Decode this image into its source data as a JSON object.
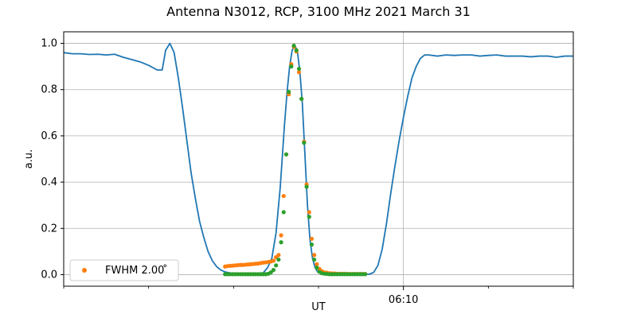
{
  "chart_data": {
    "type": "line",
    "title": "Antenna N3012, RCP, 3100 MHz 2021 March 31",
    "xlabel": "UT",
    "ylabel": "a.u.",
    "xlim": [
      0,
      60
    ],
    "ylim": [
      -0.05,
      1.05
    ],
    "x_ticks": [
      {
        "x": 40,
        "label": "06:10"
      }
    ],
    "x_minor_ticks": [
      0,
      10,
      20,
      30,
      50,
      60
    ],
    "y_ticks": [
      {
        "y": 0.0,
        "label": "0.0"
      },
      {
        "y": 0.2,
        "label": "0.2"
      },
      {
        "y": 0.4,
        "label": "0.4"
      },
      {
        "y": 0.6,
        "label": "0.6"
      },
      {
        "y": 0.8,
        "label": "0.8"
      },
      {
        "y": 1.0,
        "label": "1.0"
      }
    ],
    "grid": true,
    "legend": {
      "placement": "lower-left",
      "entries": [
        {
          "label": "FWHM 2.00$^\\circ$",
          "display": "FWHM 2.00 ̊",
          "color": "#ff7f0e"
        }
      ]
    },
    "series": [
      {
        "type": "line",
        "color": "#1f77b4",
        "x": [
          0,
          1,
          2,
          3,
          4,
          5,
          6,
          7,
          8,
          9,
          10,
          11,
          11.6,
          12,
          12.5,
          13,
          13.5,
          14,
          14.5,
          15,
          15.5,
          16,
          16.5,
          17,
          17.5,
          18,
          18.5,
          19,
          19.5,
          20,
          20.5,
          21,
          21.5,
          22,
          22.5,
          23,
          23.5,
          24,
          24.5,
          25,
          25.5,
          26,
          26.3,
          26.6,
          26.9,
          27.2,
          27.5,
          27.8,
          28.1,
          28.4,
          28.7,
          29.0,
          29.3,
          29.6,
          29.9,
          30.2,
          30.5,
          30.8,
          31.1,
          31.4,
          31.7,
          32.0,
          32.5,
          33,
          33.5,
          34,
          34.5,
          35,
          35.5,
          36,
          36.5,
          37,
          37.5,
          38,
          38.5,
          39,
          39.5,
          40,
          40.5,
          41,
          41.5,
          42,
          42.5,
          43,
          44,
          45,
          46,
          47,
          48,
          49,
          50,
          51,
          52,
          53,
          54,
          55,
          56,
          57,
          58,
          59,
          60
        ],
        "y": [
          0.96,
          0.955,
          0.955,
          0.952,
          0.953,
          0.95,
          0.953,
          0.94,
          0.93,
          0.92,
          0.905,
          0.885,
          0.885,
          0.97,
          1.0,
          0.96,
          0.85,
          0.72,
          0.58,
          0.44,
          0.33,
          0.23,
          0.16,
          0.1,
          0.06,
          0.035,
          0.02,
          0.012,
          0.008,
          0.005,
          0.004,
          0.003,
          0.003,
          0.003,
          0.003,
          0.004,
          0.008,
          0.03,
          0.07,
          0.18,
          0.38,
          0.65,
          0.79,
          0.9,
          0.97,
          0.99,
          0.97,
          0.88,
          0.74,
          0.52,
          0.3,
          0.15,
          0.07,
          0.03,
          0.012,
          0.006,
          0.004,
          0.003,
          0.003,
          0.003,
          0.002,
          0.002,
          0.002,
          0.002,
          0.002,
          0.002,
          0.002,
          0.002,
          0.002,
          0.002,
          0.01,
          0.04,
          0.11,
          0.22,
          0.35,
          0.47,
          0.58,
          0.68,
          0.77,
          0.85,
          0.9,
          0.935,
          0.95,
          0.95,
          0.945,
          0.95,
          0.948,
          0.95,
          0.95,
          0.945,
          0.948,
          0.95,
          0.945,
          0.945,
          0.945,
          0.942,
          0.945,
          0.945,
          0.94,
          0.945,
          0.945
        ]
      },
      {
        "type": "scatter",
        "name": "FWHM 2.00$^\\circ$",
        "color": "#ff7f0e",
        "x": [
          19.0,
          19.3,
          19.6,
          19.9,
          20.2,
          20.5,
          20.8,
          21.1,
          21.4,
          21.7,
          22.0,
          22.3,
          22.6,
          22.9,
          23.2,
          23.5,
          23.8,
          24.1,
          24.4,
          24.7,
          25.0,
          25.3,
          25.6,
          25.9,
          26.2,
          26.5,
          26.8,
          27.1,
          27.4,
          27.7,
          28.0,
          28.3,
          28.6,
          28.9,
          29.2,
          29.5,
          29.8,
          30.1,
          30.4,
          30.7,
          31.0,
          31.3,
          31.6,
          31.9,
          32.2,
          32.5,
          32.8,
          33.1,
          33.4,
          33.7,
          34.0,
          34.3,
          34.6,
          34.9,
          35.2,
          35.5
        ],
        "y": [
          0.035,
          0.037,
          0.038,
          0.039,
          0.04,
          0.041,
          0.042,
          0.042,
          0.043,
          0.044,
          0.045,
          0.046,
          0.047,
          0.048,
          0.05,
          0.052,
          0.053,
          0.055,
          0.057,
          0.06,
          0.075,
          0.085,
          0.17,
          0.34,
          0.52,
          0.78,
          0.91,
          0.985,
          0.965,
          0.875,
          0.76,
          0.575,
          0.39,
          0.27,
          0.155,
          0.085,
          0.045,
          0.025,
          0.015,
          0.01,
          0.008,
          0.006,
          0.005,
          0.005,
          0.004,
          0.004,
          0.004,
          0.004,
          0.003,
          0.003,
          0.003,
          0.003,
          0.003,
          0.003,
          0.003,
          0.003
        ]
      },
      {
        "type": "scatter",
        "color": "#2ca02c",
        "x": [
          19.0,
          19.3,
          19.6,
          19.9,
          20.2,
          20.5,
          20.8,
          21.1,
          21.4,
          21.7,
          22.0,
          22.3,
          22.6,
          22.9,
          23.2,
          23.5,
          23.8,
          24.1,
          24.4,
          24.7,
          25.0,
          25.3,
          25.6,
          25.9,
          26.2,
          26.5,
          26.8,
          27.1,
          27.4,
          27.7,
          28.0,
          28.3,
          28.6,
          28.9,
          29.2,
          29.5,
          29.8,
          30.1,
          30.4,
          30.7,
          31.0,
          31.3,
          31.6,
          31.9,
          32.2,
          32.5,
          32.8,
          33.1,
          33.4,
          33.7,
          34.0,
          34.3,
          34.6,
          34.9,
          35.2,
          35.5
        ],
        "y": [
          0.002,
          0.002,
          0.002,
          0.002,
          0.002,
          0.002,
          0.002,
          0.002,
          0.002,
          0.002,
          0.002,
          0.002,
          0.002,
          0.002,
          0.002,
          0.002,
          0.002,
          0.004,
          0.01,
          0.02,
          0.04,
          0.065,
          0.14,
          0.27,
          0.52,
          0.79,
          0.9,
          0.99,
          0.97,
          0.89,
          0.76,
          0.57,
          0.38,
          0.25,
          0.13,
          0.065,
          0.03,
          0.012,
          0.006,
          0.004,
          0.003,
          0.002,
          0.002,
          0.002,
          0.002,
          0.002,
          0.002,
          0.002,
          0.002,
          0.002,
          0.002,
          0.002,
          0.002,
          0.002,
          0.002,
          0.002
        ]
      }
    ]
  }
}
